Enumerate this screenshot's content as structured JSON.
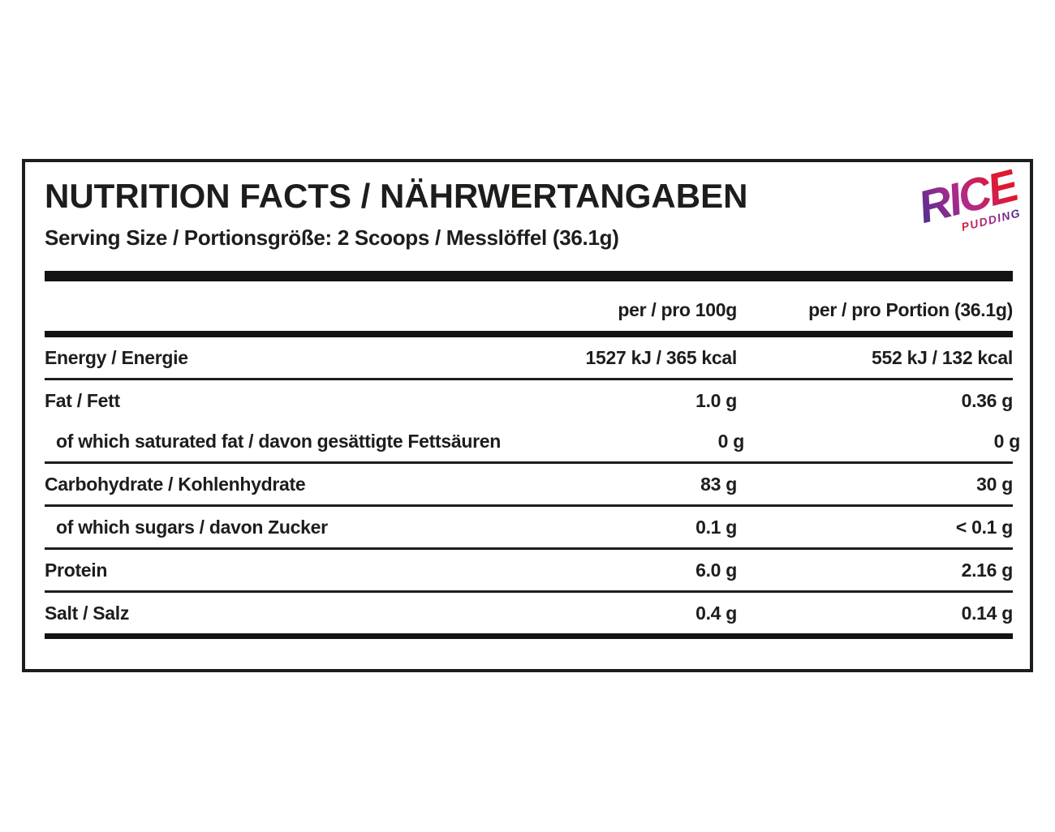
{
  "label": {
    "title": "NUTRITION FACTS / NÄHRWERTANGABEN",
    "serving": "Serving Size / Portionsgröße: 2 Scoops / Messlöffel (36.1g)"
  },
  "logo": {
    "brand": "RICE",
    "flavor": "PUDDING",
    "gradient_start": "#5b2e91",
    "gradient_mid": "#b02a8a",
    "gradient_end": "#e0192f"
  },
  "table": {
    "columns": [
      "per / pro 100g",
      "per / pro Portion (36.1g)"
    ],
    "rows": [
      {
        "label": "Energy / Energie",
        "per100": "1527 kJ / 365 kcal",
        "portion": "552 kJ / 132 kcal",
        "indent": false,
        "divider": true
      },
      {
        "label": "Fat / Fett",
        "per100": "1.0 g",
        "portion": "0.36 g",
        "indent": false,
        "divider": false
      },
      {
        "label": "of which saturated fat / davon gesättigte Fettsäuren",
        "per100": "0 g",
        "portion": "0 g",
        "indent": true,
        "divider": true
      },
      {
        "label": "Carbohydrate / Kohlenhydrate",
        "per100": "83 g",
        "portion": "30 g",
        "indent": false,
        "divider": true
      },
      {
        "label": "of which sugars / davon Zucker",
        "per100": "0.1 g",
        "portion": "< 0.1 g",
        "indent": true,
        "divider": true
      },
      {
        "label": "Protein",
        "per100": "6.0 g",
        "portion": "2.16 g",
        "indent": false,
        "divider": true
      },
      {
        "label": "Salt / Salz",
        "per100": "0.4 g",
        "portion": "0.14 g",
        "indent": false,
        "divider": false
      }
    ]
  },
  "colors": {
    "text": "#1d1d1b",
    "bar": "#131313",
    "background": "#ffffff"
  }
}
